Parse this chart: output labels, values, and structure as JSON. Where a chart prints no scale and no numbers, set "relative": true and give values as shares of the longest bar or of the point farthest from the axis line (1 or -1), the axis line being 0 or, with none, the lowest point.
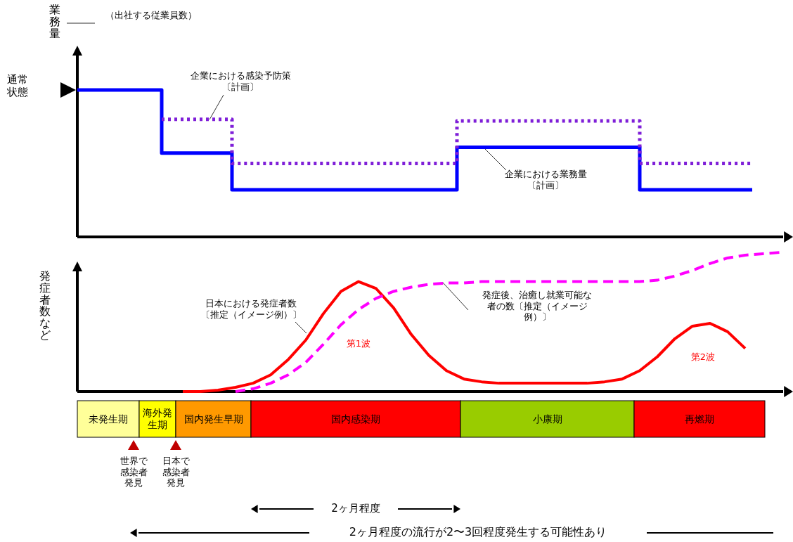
{
  "chart_data": [
    {
      "type": "step",
      "relative": true,
      "ylabel": "業務量",
      "categories": [
        null,
        null,
        null,
        null,
        null,
        null,
        null,
        null,
        null,
        null,
        null,
        null,
        null,
        null,
        null,
        null,
        null,
        null,
        null,
        null,
        null,
        null,
        null,
        null,
        null,
        null,
        null,
        null,
        null,
        null,
        null,
        null,
        null,
        null,
        null,
        null,
        null,
        null,
        null,
        null,
        null,
        null,
        null,
        null,
        null,
        null,
        null,
        null,
        null,
        null,
        null
      ],
      "annotations": [
        "（出社する従業員数）",
        "通常状態"
      ],
      "series": [
        {
          "name": "企業における業務量〔計画〕",
          "color": "#0000ff",
          "line_style": "solid",
          "values": [
            1,
            1,
            1,
            1,
            1,
            1,
            0.57,
            0.57,
            0.57,
            0.57,
            0.57,
            0.32,
            0.32,
            0.32,
            0.32,
            0.32,
            0.32,
            0.32,
            0.32,
            0.32,
            0.32,
            0.32,
            0.32,
            0.32,
            0.32,
            0.32,
            0.32,
            0.61,
            0.61,
            0.61,
            0.61,
            0.61,
            0.61,
            0.61,
            0.61,
            0.61,
            0.61,
            0.61,
            0.61,
            0.61,
            0.32,
            0.32,
            0.32,
            0.32,
            0.32,
            0.32,
            0.32,
            0.32,
            0.32,
            null,
            null
          ]
        },
        {
          "name": "企業における感染予防策〔計画〕",
          "color": "#7f1fd8",
          "line_style": "dotted",
          "values": [
            null,
            null,
            null,
            null,
            null,
            null,
            0.8,
            0.8,
            0.8,
            0.8,
            0.8,
            0.5,
            0.5,
            0.5,
            0.5,
            0.5,
            0.5,
            0.5,
            0.5,
            0.5,
            0.5,
            0.5,
            0.5,
            0.5,
            0.5,
            0.5,
            0.5,
            0.79,
            0.79,
            0.79,
            0.79,
            0.79,
            0.79,
            0.79,
            0.79,
            0.79,
            0.79,
            0.79,
            0.79,
            0.79,
            0.5,
            0.5,
            0.5,
            0.5,
            0.5,
            0.5,
            0.5,
            0.5,
            0.5,
            null,
            null
          ]
        }
      ]
    },
    {
      "type": "line",
      "relative": true,
      "ylabel": "発症者数など",
      "categories": [
        null,
        null,
        null,
        null,
        null,
        null,
        null,
        null,
        null,
        null,
        null,
        null,
        null,
        null,
        null,
        null,
        null,
        null,
        null,
        null,
        null,
        null,
        null,
        null,
        null,
        null,
        null,
        null,
        null,
        null,
        null,
        null,
        null,
        null,
        null,
        null,
        null,
        null,
        null,
        null,
        null
      ],
      "annotations": [
        "第1波",
        "第2波"
      ],
      "series": [
        {
          "name": "日本における発症者数〔推定（イメージ例）〕",
          "color": "#ff0000",
          "line_style": "solid",
          "values": [
            null,
            null,
            null,
            null,
            null,
            null,
            0,
            0,
            0.01,
            0.03,
            0.06,
            0.12,
            0.23,
            0.37,
            0.56,
            0.72,
            0.79,
            0.74,
            0.6,
            0.41,
            0.26,
            0.15,
            0.09,
            0.07,
            0.06,
            0.06,
            0.06,
            0.06,
            0.06,
            0.06,
            0.07,
            0.09,
            0.15,
            0.25,
            0.38,
            0.47,
            0.49,
            0.43,
            0.31,
            null,
            null
          ]
        },
        {
          "name": "発症後、治癒し就業可能な者の数〔推定（イメージ例）〕",
          "color": "#ff00ff",
          "line_style": "dashed",
          "values": [
            null,
            null,
            null,
            null,
            null,
            null,
            null,
            null,
            null,
            0,
            0.02,
            0.06,
            0.12,
            0.21,
            0.34,
            0.48,
            0.59,
            0.67,
            0.72,
            0.75,
            0.77,
            0.78,
            0.78,
            0.79,
            0.79,
            0.79,
            0.79,
            0.79,
            0.79,
            0.79,
            0.79,
            0.79,
            0.79,
            0.8,
            0.83,
            0.87,
            0.92,
            0.96,
            0.98,
            0.99,
            1
          ]
        }
      ]
    },
    {
      "type": "other",
      "categories": [
        "未発生期",
        "海外発生期",
        "国内発生早期",
        "国内感染期",
        "小康期",
        "再燃期"
      ],
      "colors": [
        "#ffff99",
        "#ffff00",
        "#ff9900",
        "#ff0000",
        "#99cc00",
        "#ff0000"
      ],
      "annotations": [
        "世界で感染者発見",
        "日本で感染者発見",
        "2ヶ月程度",
        "2ヶ月程度の流行が2〜3回程度発生する可能性あり"
      ]
    }
  ]
}
